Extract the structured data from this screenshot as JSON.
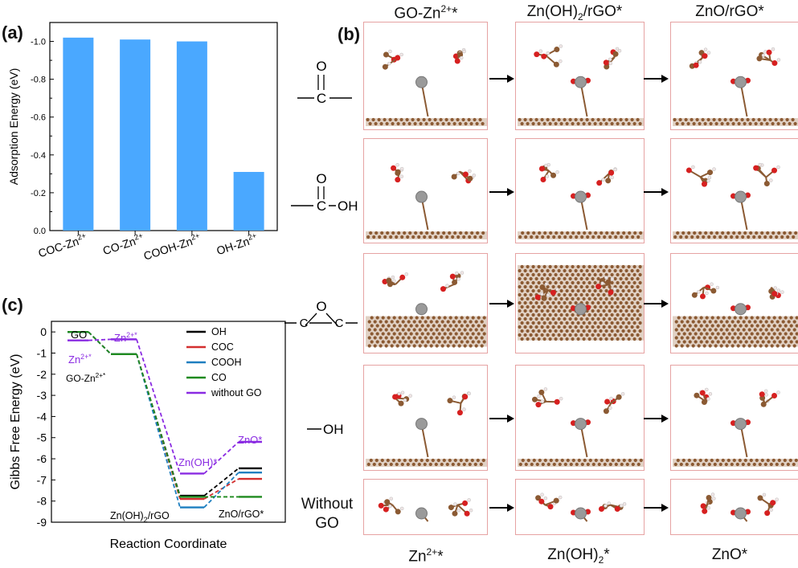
{
  "panel_labels": {
    "a": "(a)",
    "b": "(b)",
    "c": "(c)"
  },
  "chart_data": [
    {
      "type": "bar",
      "panel": "(a)",
      "categories": [
        "COC-Zn2+",
        "CO-Zn2+",
        "COOH-Zn2+",
        "OH-Zn2+"
      ],
      "category_display": [
        {
          "base": "COC-Zn",
          "sup": "2+"
        },
        {
          "base": "CO-Zn",
          "sup": "2+"
        },
        {
          "base": "COOH-Zn",
          "sup": "2+"
        },
        {
          "base": "OH-Zn",
          "sup": "2+"
        }
      ],
      "values": [
        -1.02,
        -1.01,
        -1.0,
        -0.31
      ],
      "ylabel": "Adsorption Energy (eV)",
      "ylim": [
        0.0,
        -1.1
      ],
      "yticks": [
        "0.0",
        "-0.2",
        "-0.4",
        "-0.6",
        "-0.8",
        "-1.0"
      ],
      "ytick_values": [
        0.0,
        -0.2,
        -0.4,
        -0.6,
        -0.8,
        -1.0
      ],
      "color": "#4aa8ff"
    },
    {
      "type": "line",
      "panel": "(c)",
      "xlabel": "Reaction Coordinate",
      "ylabel": "Gibbs Free Energy (eV)",
      "ylim": [
        0.5,
        -9
      ],
      "yticks": [
        "0",
        "-1",
        "-2",
        "-3",
        "-4",
        "-5",
        "-6",
        "-7",
        "-8",
        "-9"
      ],
      "ytick_values": [
        0,
        -1,
        -2,
        -3,
        -4,
        -5,
        -6,
        -7,
        -8,
        -9
      ],
      "steps": [
        "GO",
        "GO-Zn2+*",
        "Zn(OH)2/rGO",
        "ZnO/rGO*"
      ],
      "series": [
        {
          "name": "OH",
          "color": "#000000",
          "values": [
            0,
            -1.05,
            -7.75,
            -6.45
          ]
        },
        {
          "name": "COC",
          "color": "#d32f2f",
          "values": [
            0,
            -1.05,
            -7.9,
            -6.95
          ]
        },
        {
          "name": "COOH",
          "color": "#1e7fc0",
          "values": [
            0,
            -1.05,
            -8.3,
            -6.65
          ]
        },
        {
          "name": "CO",
          "color": "#1e8a1e",
          "values": [
            0,
            -1.05,
            -7.8,
            -7.8
          ]
        },
        {
          "name": "without GO",
          "color": "#8a2be2",
          "values": [
            -0.4,
            -0.35,
            -6.7,
            -5.2
          ]
        }
      ],
      "annotations": {
        "go": "GO",
        "zn_top": "Zn",
        "zn_top_sup": "2+*",
        "zn_left": "Zn",
        "zn_left_sup": "2+*",
        "go_zn": "GO-Zn",
        "go_zn_sup": "2+*",
        "znoh": "Zn(OH)*",
        "zno": "ZnO*",
        "znoh2_rgo": "Zn(OH)",
        "znoh2_rgo_sub": "2",
        "znoh2_rgo_tail": "/rGO",
        "zno_rgo": "ZnO/rGO*"
      }
    }
  ],
  "figure_b": {
    "column_titles": [
      {
        "base": "GO-Zn",
        "sup": "2+",
        "tail": "*"
      },
      {
        "base": "Zn(OH)",
        "sub": "2",
        "tail": "/rGO*"
      },
      {
        "base": "ZnO/rGO*"
      }
    ],
    "row_labels": {
      "carbonyl_o": "O",
      "carbonyl_c": "C",
      "carboxyl_o": "O",
      "carboxyl_c": "C",
      "carboxyl_oh": "OH",
      "epoxy_o": "O",
      "epoxy_c1": "C",
      "epoxy_c2": "C",
      "hydroxyl": "OH",
      "without_go": "Without GO"
    },
    "bottom_labels": [
      {
        "base": "Zn",
        "sup": "2+",
        "tail": "*"
      },
      {
        "base": "Zn(OH)",
        "sub": "2",
        "tail": "*"
      },
      {
        "base": "ZnO*"
      }
    ]
  }
}
